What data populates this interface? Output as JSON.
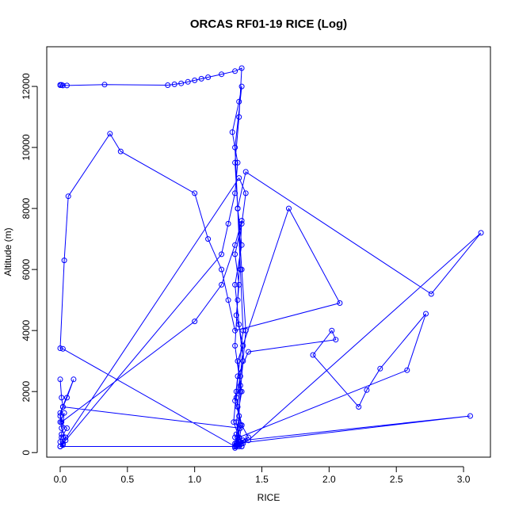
{
  "chart_data": {
    "type": "line",
    "title": "ORCAS RF01-19 RICE (Log)",
    "xlabel": "RICE",
    "ylabel": "Altitude (m)",
    "xlim": [
      -0.1,
      3.2
    ],
    "ylim": [
      -150,
      13300
    ],
    "xticks": [
      "0.0",
      "0.5",
      "1.0",
      "1.5",
      "2.0",
      "2.5",
      "3.0"
    ],
    "xtick_values": [
      0,
      0.5,
      1.0,
      1.5,
      2.0,
      2.5,
      3.0
    ],
    "yticks": [
      "0",
      "2000",
      "4000",
      "6000",
      "8000",
      "10000",
      "12000"
    ],
    "ytick_values": [
      0,
      2000,
      4000,
      6000,
      8000,
      10000,
      12000
    ],
    "marker": "open-circle",
    "grid": false,
    "legend": "none",
    "colors": {
      "series": "#0000ff",
      "axis": "#000000",
      "background": "#ffffff"
    },
    "series": [
      {
        "x": [
          0.0,
          0.02,
          0.0,
          0.01,
          0.05,
          0.33,
          0.8,
          0.85,
          0.9,
          0.95,
          1.0,
          1.05,
          1.1,
          1.2,
          1.3,
          1.35,
          1.33,
          1.3,
          1.32,
          1.35,
          1.38,
          1.34,
          1.32,
          1.31,
          1.35,
          1.3,
          1.36,
          1.33,
          1.31,
          1.4,
          1.35,
          1.32,
          1.34,
          1.36,
          1.31,
          1.33,
          1.3,
          1.35,
          1.38,
          1.33,
          0.0,
          0.02,
          0.01,
          0.05,
          0.0,
          0.03,
          0.01,
          0.0,
          0.02,
          0.04,
          1.2,
          1.25,
          1.3,
          1.32,
          1.28,
          1.33,
          1.35,
          1.3,
          1.32,
          1.34,
          1.36,
          1.31,
          1.29,
          1.33,
          1.3,
          1.35,
          1.32,
          1.34,
          1.31,
          1.36,
          1.33,
          1.3,
          1.35,
          1.32,
          1.38,
          2.76,
          3.13,
          1.4,
          1.35,
          1.32,
          1.3,
          1.34,
          1.31,
          3.05,
          1.36,
          1.33,
          1.3,
          0.02,
          0.0,
          0.03,
          0.06,
          0.37,
          0.45,
          1.0,
          1.1,
          1.2,
          1.25,
          1.3,
          2.08,
          1.7,
          1.32,
          1.35,
          1.31,
          1.33,
          2.58,
          2.72,
          2.38,
          2.28,
          2.22,
          1.88,
          2.02,
          2.05,
          1.4,
          1.32,
          1.3,
          1.35,
          1.33,
          1.31,
          1.35,
          1.32,
          1.3,
          1.34,
          0.02,
          0.05,
          0.1,
          0.0,
          0.01,
          1.0,
          1.2,
          1.3,
          1.35,
          1.32,
          1.3,
          1.34,
          1.33,
          1.31,
          1.36,
          1.33,
          0.0,
          0.02,
          0.04,
          0.01,
          0.0,
          0.02,
          0.01,
          0.0
        ],
        "y": [
          12050,
          12030,
          12040,
          12050,
          12030,
          12060,
          12040,
          12070,
          12100,
          12150,
          12200,
          12250,
          12300,
          12400,
          12500,
          12600,
          11000,
          9500,
          8000,
          6000,
          4000,
          2000,
          500,
          200,
          300,
          150,
          400,
          250,
          300,
          500,
          900,
          1500,
          2500,
          3500,
          4500,
          5500,
          6500,
          7500,
          8500,
          9000,
          200,
          300,
          500,
          800,
          1000,
          1300,
          600,
          350,
          250,
          400,
          6500,
          7500,
          8500,
          9500,
          10500,
          11500,
          12000,
          10000,
          8000,
          6000,
          4000,
          2000,
          1000,
          500,
          300,
          200,
          400,
          900,
          1800,
          3000,
          4200,
          5500,
          6800,
          8000,
          9200,
          5200,
          7200,
          400,
          300,
          250,
          200,
          350,
          300,
          1200,
          400,
          250,
          200,
          3400,
          3420,
          6300,
          8400,
          10450,
          9870,
          8500,
          7000,
          6000,
          5000,
          4000,
          4900,
          8000,
          3000,
          2000,
          1000,
          500,
          2700,
          4550,
          2750,
          2050,
          1500,
          3200,
          4000,
          3700,
          3300,
          2500,
          1700,
          900,
          400,
          250,
          200,
          300,
          500,
          800,
          1500,
          1800,
          2400,
          1300,
          1000,
          4300,
          5500,
          6800,
          7600,
          5000,
          3500,
          2200,
          1200,
          600,
          300,
          200,
          200,
          300,
          500,
          800,
          1200,
          1500,
          1800,
          2400
        ]
      }
    ]
  }
}
